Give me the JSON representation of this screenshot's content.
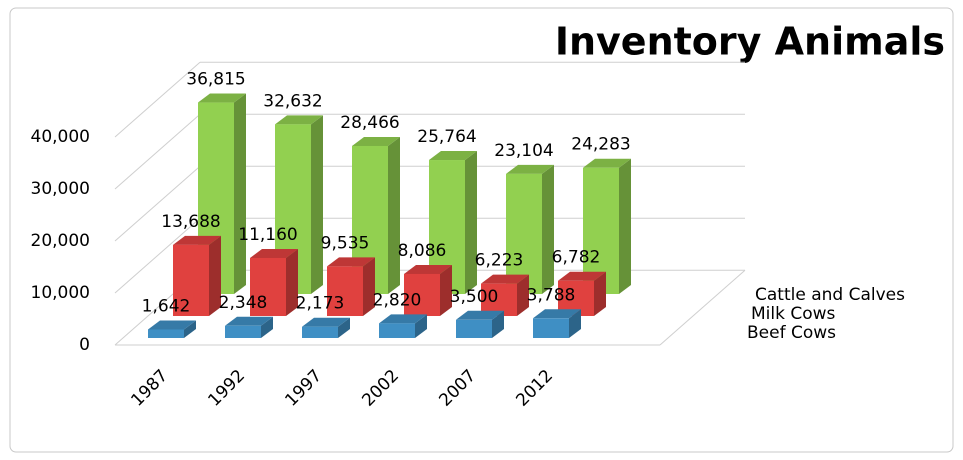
{
  "chart_data": {
    "type": "bar3d",
    "title": "Inventory Animals",
    "categories": [
      "1987",
      "1992",
      "1997",
      "2002",
      "2007",
      "2012"
    ],
    "series": [
      {
        "name": "Beef Cows",
        "color": "#3f8fc4",
        "values": [
          1642,
          2348,
          2173,
          2820,
          3500,
          3788
        ],
        "value_labels": [
          "1,642",
          "2,348",
          "2,173",
          "2,820",
          "3,500",
          "3,788"
        ]
      },
      {
        "name": "Milk Cows",
        "color": "#e0413f",
        "values": [
          13688,
          11160,
          9535,
          8086,
          6223,
          6782
        ],
        "value_labels": [
          "13,688",
          "11,160",
          "9,535",
          "8,086",
          "6,223",
          "6,782"
        ]
      },
      {
        "name": "Cattle and Calves",
        "color": "#92d050",
        "values": [
          36815,
          32632,
          28466,
          25764,
          23104,
          24283
        ],
        "value_labels": [
          "36,815",
          "32,632",
          "28,466",
          "25,764",
          "23,104",
          "24,283"
        ]
      }
    ],
    "ylim": [
      0,
      40000
    ],
    "yticks": [
      0,
      {
        "value": 10000,
        "label": "10,000"
      },
      {
        "value": 20000,
        "label": "20,000"
      },
      {
        "value": 30000,
        "label": "30,000"
      },
      {
        "value": 40000,
        "label": "40,000"
      }
    ],
    "grid": true
  }
}
